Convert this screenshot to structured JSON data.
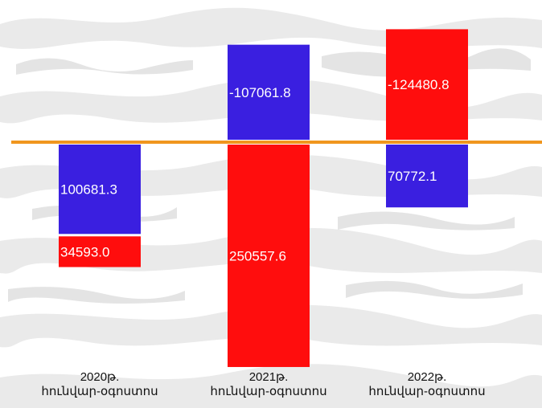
{
  "chart_data": {
    "type": "bar",
    "categories": [
      [
        "2020թ.",
        "հունվար-օգոստոս"
      ],
      [
        "2021թ.",
        "հունվար-օգոստոս"
      ],
      [
        "2022թ.",
        "հունվար-օգոստոս"
      ]
    ],
    "series": [
      {
        "color": "#3a1fe0",
        "values": [
          100681.3,
          -107061.8,
          70772.1
        ],
        "labels": [
          "100681.3",
          "-107061.8",
          "70772.1"
        ]
      },
      {
        "color": "#ff0d0d",
        "values": [
          34593.0,
          250557.6,
          -124480.8
        ],
        "labels": [
          "34593.0",
          "250557.6",
          "-124480.8"
        ]
      }
    ],
    "zero_line_color": "#f0961e",
    "title": "",
    "xlabel": "",
    "ylabel": "",
    "grid": false,
    "legend": "none"
  }
}
